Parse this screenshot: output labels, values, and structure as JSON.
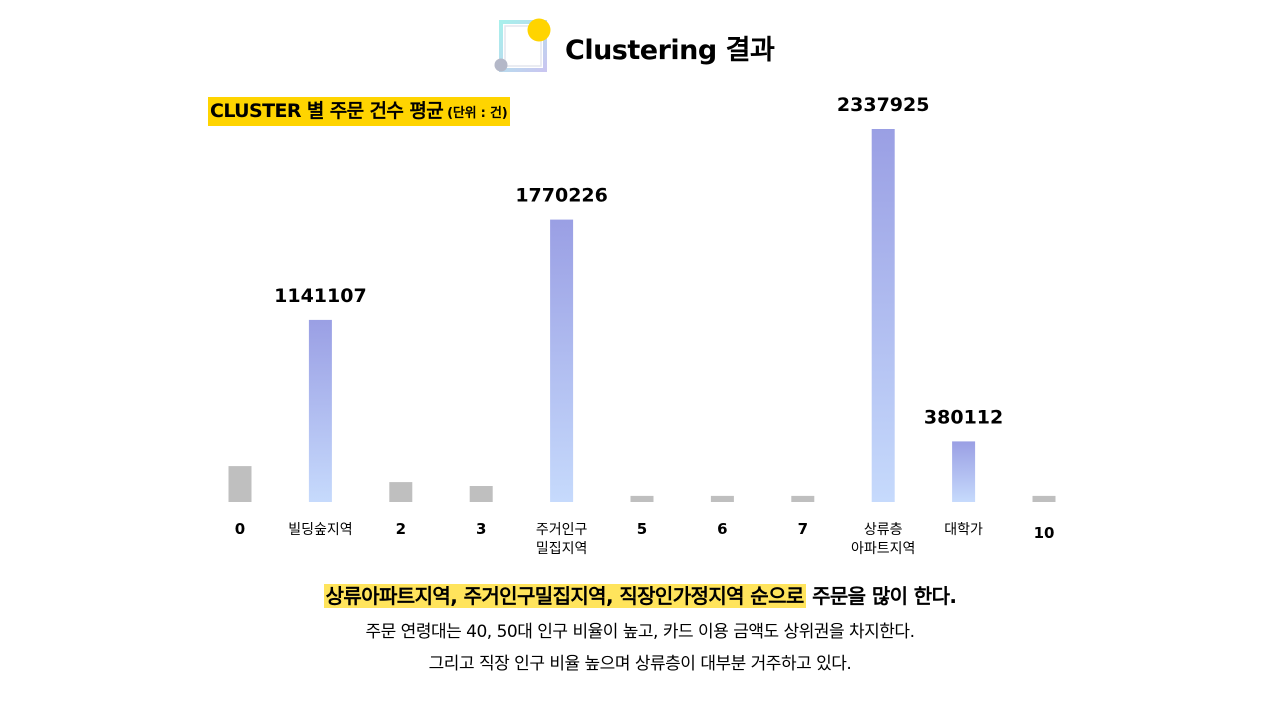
{
  "header": {
    "title": "Clustering 결과",
    "logo_icon": "square-frame-with-dot-icon"
  },
  "subtitle": {
    "main": "CLUSTER 별 주문 건수 평균",
    "unit": "(단위  : 건)"
  },
  "colors": {
    "highlight_bar_top": "#9a9fe4",
    "highlight_bar_bottom": "#c6dafc",
    "gray_bar": "#bfbfbf",
    "subtitle_bg": "#ffd400",
    "summary_highlight": "#ffe45c"
  },
  "chart_data": {
    "type": "bar",
    "title": "CLUSTER 별 주문 건수 평균",
    "categories": [
      "0",
      "빌딩숲지역",
      "2",
      "3",
      "주거인구\n밀집지역",
      "5",
      "6",
      "7",
      "상류층\n아파트지역",
      "대학가",
      "10"
    ],
    "values": [
      225000,
      1141107,
      125000,
      100000,
      1770226,
      38000,
      38000,
      38000,
      2337925,
      380112,
      38000
    ],
    "highlighted": [
      false,
      true,
      false,
      false,
      true,
      false,
      false,
      false,
      true,
      true,
      false
    ],
    "data_labels": [
      "",
      "1141107",
      "",
      "",
      "1770226",
      "",
      "",
      "",
      "2337925",
      "380112",
      ""
    ],
    "ylim": [
      0,
      2337925
    ],
    "grid": false,
    "legend": "none"
  },
  "summary": {
    "highlight": "상류아파트지역, 주거인구밀집지역, 직장인가정지역 순으로",
    "rest": " 주문을 많이 한다.",
    "line2": "주문 연령대는 40, 50대 인구 비율이 높고, 카드 이용 금액도 상위권을 차지한다.",
    "line3": "그리고 직장 인구 비율 높으며 상류층이 대부분 거주하고 있다."
  }
}
